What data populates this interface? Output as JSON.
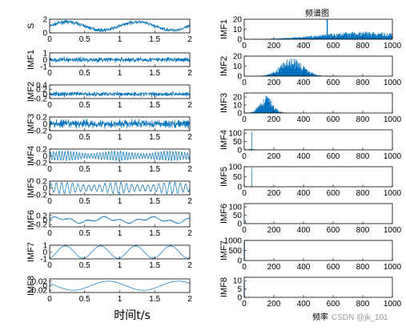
{
  "chart_data": [
    {
      "type": "line",
      "group": "time-domain",
      "xlabel": "时间t/s",
      "xlim": [
        0,
        2
      ],
      "xticks": [
        "0",
        "0.5",
        "1",
        "1.5",
        "2"
      ],
      "panels": [
        {
          "ylabel": "S",
          "ylim": [
            0,
            2
          ],
          "yticks": [
            "0",
            "2"
          ],
          "signal": {
            "kind": "sine_noise",
            "base": 1,
            "amp": 0.6,
            "freq": 2,
            "noise": 0.25
          }
        },
        {
          "ylabel": "IMF1",
          "ylim": [
            -1,
            1
          ],
          "yticks": [
            "-1",
            "0",
            "1"
          ],
          "signal": {
            "kind": "noise",
            "amp": 0.35
          }
        },
        {
          "ylabel": "IMF2",
          "ylim": [
            -0.2,
            0.4
          ],
          "yticks": [
            "-0.2",
            "0",
            "0.2",
            "0.4"
          ],
          "signal": {
            "kind": "noise",
            "amp": 0.1
          }
        },
        {
          "ylabel": "IMF3",
          "ylim": [
            -0.2,
            0.2
          ],
          "yticks": [
            "-0.2",
            "0",
            "0.2"
          ],
          "signal": {
            "kind": "noise",
            "amp": 0.12
          }
        },
        {
          "ylabel": "IMF4",
          "ylim": [
            -0.2,
            0.2
          ],
          "yticks": [
            "-0.2",
            "0",
            "0.2"
          ],
          "signal": {
            "kind": "osc",
            "amp": 0.14,
            "freq": 24
          }
        },
        {
          "ylabel": "IMF5",
          "ylim": [
            -0.2,
            0.2
          ],
          "yticks": [
            "-0.2",
            "0",
            "0.2"
          ],
          "signal": {
            "kind": "osc",
            "amp": 0.16,
            "freq": 13
          }
        },
        {
          "ylabel": "IMF6",
          "ylim": [
            -0.3,
            0.3
          ],
          "yticks": [
            "-0.2",
            "0",
            "0.2"
          ],
          "signal": {
            "kind": "slow",
            "amp": 0.15
          }
        },
        {
          "ylabel": "IMF7",
          "ylim": [
            -1,
            1
          ],
          "yticks": [
            "-1",
            "0",
            "1"
          ],
          "signal": {
            "kind": "sine",
            "amp": 0.9,
            "freq": 2
          }
        },
        {
          "ylabel": "IMF8",
          "ylim": [
            -0.03,
            0.03
          ],
          "yticks": [
            "-0.02",
            "0",
            "0.02"
          ],
          "signal": {
            "kind": "trend",
            "amp": 0.02
          }
        }
      ]
    },
    {
      "type": "line",
      "group": "spectrum",
      "title": "频谱图",
      "xlabel": "频率",
      "xlim": [
        0,
        1000
      ],
      "xticks": [
        "0",
        "200",
        "400",
        "600",
        "800",
        "1000"
      ],
      "panels": [
        {
          "ylabel": "IMF1",
          "ylim": [
            0,
            20
          ],
          "yticks": [
            "0",
            "10",
            "20"
          ],
          "spectrum": {
            "kind": "broad",
            "center": 800,
            "width": 400,
            "peak": 6,
            "spike_at": 560,
            "spike": 20
          }
        },
        {
          "ylabel": "IMF2",
          "ylim": [
            0,
            20
          ],
          "yticks": [
            "0",
            "10",
            "20"
          ],
          "spectrum": {
            "kind": "band",
            "center": 320,
            "width": 110,
            "peak": 18
          }
        },
        {
          "ylabel": "IMF3",
          "ylim": [
            0,
            25
          ],
          "yticks": [
            "0",
            "10",
            "20"
          ],
          "spectrum": {
            "kind": "band",
            "center": 150,
            "width": 60,
            "peak": 22
          }
        },
        {
          "ylabel": "IMF4",
          "ylim": [
            0,
            120
          ],
          "yticks": [
            "0",
            "50",
            "100"
          ],
          "spectrum": {
            "kind": "spike",
            "at": 50,
            "peak": 110,
            "floor": 8
          }
        },
        {
          "ylabel": "IMF5",
          "ylim": [
            0,
            100
          ],
          "yticks": [
            "0",
            "50",
            "100"
          ],
          "spectrum": {
            "kind": "spike",
            "at": 50,
            "peak": 95,
            "floor": 3
          }
        },
        {
          "ylabel": "IMF6",
          "ylim": [
            0,
            120
          ],
          "yticks": [
            "0",
            "50",
            "100"
          ],
          "spectrum": {
            "kind": "spike",
            "at": 8,
            "peak": 20,
            "floor": 2
          }
        },
        {
          "ylabel": "IMF7",
          "ylim": [
            0,
            1000
          ],
          "yticks": [
            "0",
            "500",
            "1000"
          ],
          "spectrum": {
            "kind": "spike",
            "at": 2,
            "peak": 900,
            "floor": 0
          }
        },
        {
          "ylabel": "IMF8",
          "ylim": [
            0,
            12
          ],
          "yticks": [
            "0",
            "5",
            "10"
          ],
          "spectrum": {
            "kind": "spike",
            "at": 1,
            "peak": 9,
            "floor": 0
          }
        }
      ]
    }
  ],
  "watermark": "CSDN @jk_101"
}
